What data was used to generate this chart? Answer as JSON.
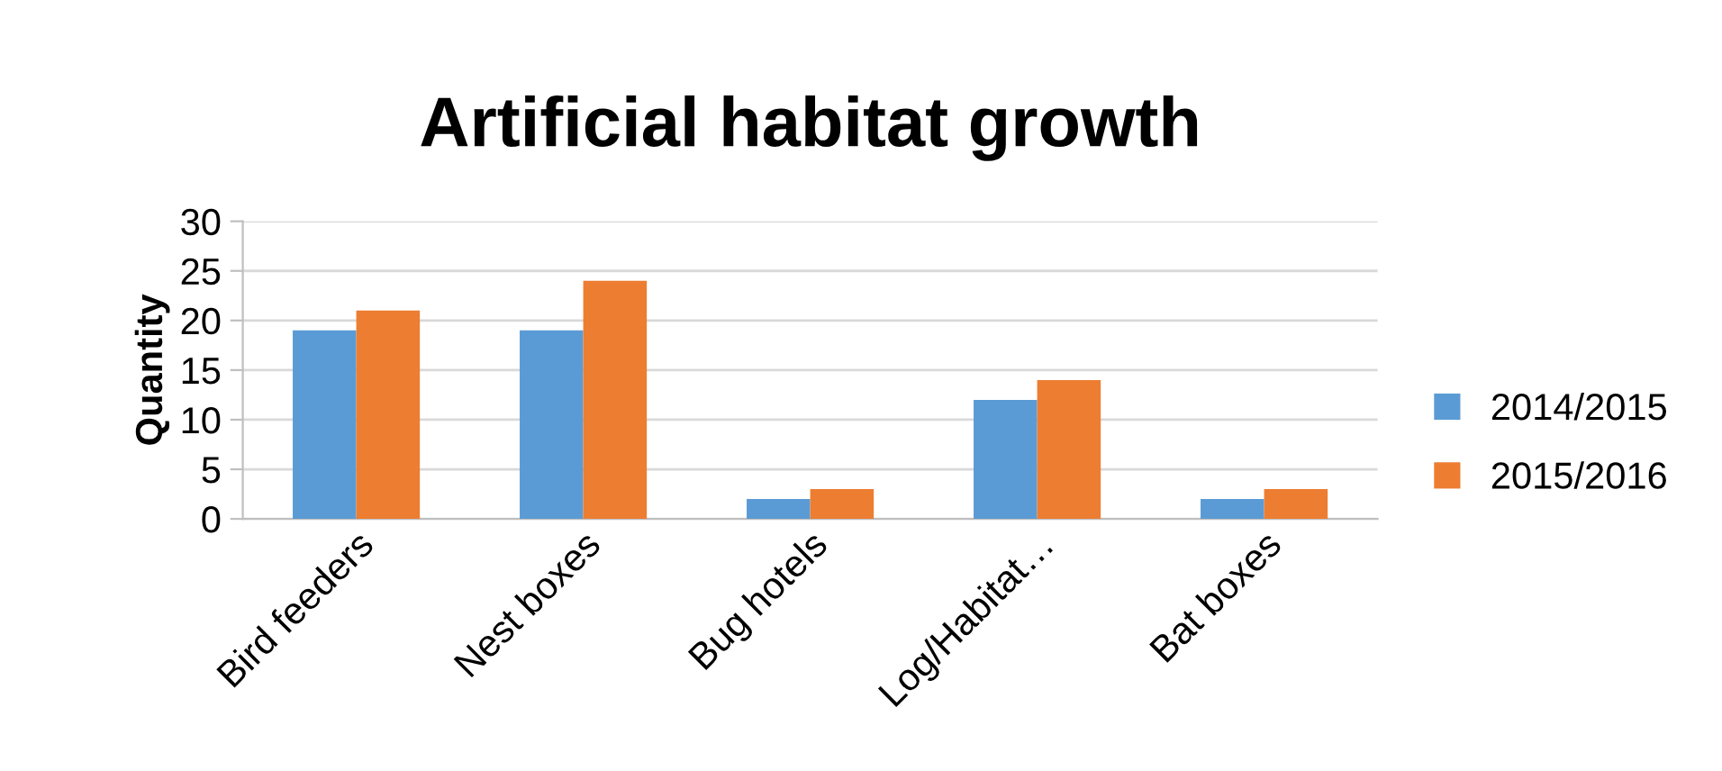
{
  "chart_data": {
    "type": "bar",
    "title": "Artificial habitat growth",
    "ylabel": "Quantity",
    "categories": [
      "Bird feeders",
      "Nest boxes",
      "Bug hotels",
      "Log/Habitat…",
      "Bat boxes"
    ],
    "series": [
      {
        "name": "2014/2015",
        "color": "#5b9bd5",
        "values": [
          19,
          19,
          2,
          12,
          2
        ]
      },
      {
        "name": "2015/2016",
        "color": "#ed7d31",
        "values": [
          21,
          24,
          3,
          14,
          3
        ]
      }
    ],
    "ylim": [
      0,
      30
    ],
    "yticks": [
      0,
      5,
      10,
      15,
      20,
      25,
      30
    ],
    "grid": "y",
    "legend": "right"
  }
}
